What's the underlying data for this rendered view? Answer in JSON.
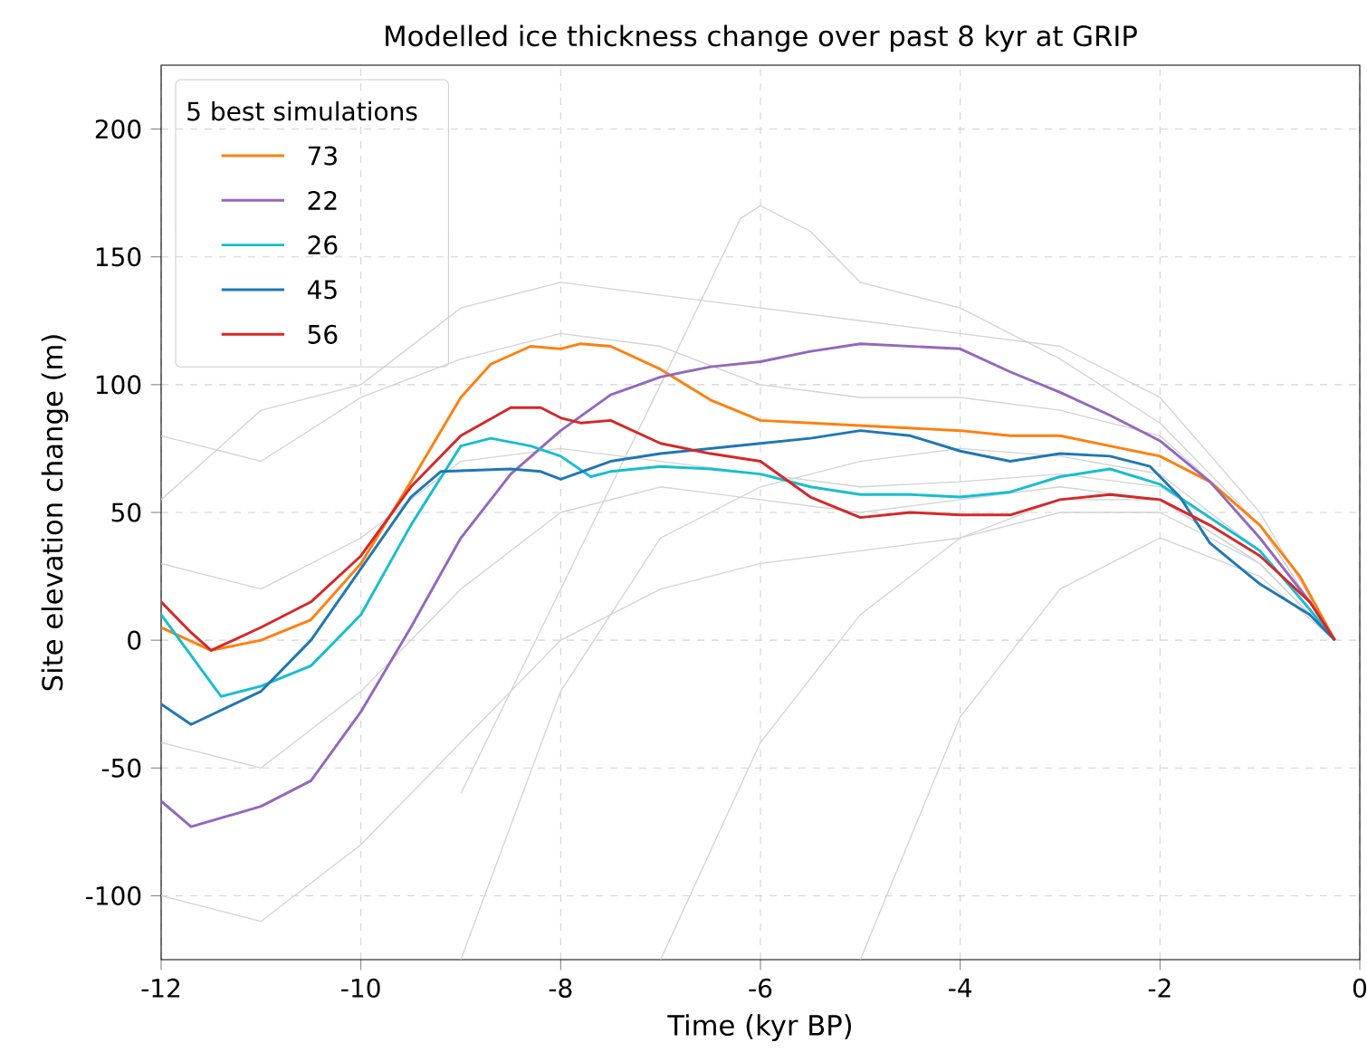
{
  "chart_data": {
    "type": "line",
    "title": "Modelled ice thickness change over past 8 kyr at GRIP",
    "xlabel": "Time (kyr BP)",
    "ylabel": "Site elevation change (m)",
    "legend_title": "5 best simulations",
    "xlim": [
      -12,
      0
    ],
    "ylim": [
      -125,
      225
    ],
    "xticks": [
      -12,
      -10,
      -8,
      -6,
      -4,
      -2,
      0
    ],
    "yticks": [
      -100,
      -50,
      0,
      50,
      100,
      150,
      200
    ],
    "grid": true,
    "legend": "top left",
    "line_style": "solid",
    "marker": "none",
    "series": [
      {
        "color": "#d3d3d3",
        "x": [
          -12,
          -11,
          -10,
          -9,
          -8,
          -7,
          -6,
          -5,
          -4,
          -3,
          -2,
          -1,
          -0.25
        ],
        "values": [
          55,
          90,
          100,
          130,
          140,
          135,
          130,
          125,
          120,
          115,
          95,
          50,
          0
        ]
      },
      {
        "color": "#d3d3d3",
        "x": [
          -9,
          -8,
          -7,
          -6,
          -5,
          -4,
          -3,
          -2,
          -1,
          -0.25
        ],
        "values": [
          -125,
          -20,
          40,
          60,
          70,
          75,
          72,
          65,
          35,
          0
        ]
      },
      {
        "color": "#d3d3d3",
        "x": [
          -12,
          -11,
          -10,
          -9,
          -8,
          -7,
          -6,
          -5,
          -4,
          -3,
          -2,
          -1,
          -0.25
        ],
        "values": [
          30,
          20,
          40,
          70,
          75,
          70,
          65,
          60,
          62,
          65,
          60,
          35,
          0
        ]
      },
      {
        "color": "#d3d3d3",
        "x": [
          -12,
          -11,
          -10,
          -9,
          -8,
          -7,
          -6,
          -5,
          -4,
          -3,
          -2,
          -1,
          -0.25
        ],
        "values": [
          -40,
          -50,
          -20,
          20,
          50,
          60,
          55,
          50,
          55,
          60,
          55,
          30,
          0
        ]
      },
      {
        "color": "#d3d3d3",
        "x": [
          -7,
          -6,
          -5,
          -4,
          -3,
          -2,
          -1,
          -0.25
        ],
        "values": [
          -125,
          -40,
          10,
          40,
          55,
          55,
          30,
          0
        ]
      },
      {
        "color": "#d3d3d3",
        "x": [
          -12,
          -11,
          -10,
          -9,
          -8,
          -7,
          -6,
          -5,
          -4,
          -3,
          -2,
          -1,
          -0.25
        ],
        "values": [
          80,
          70,
          95,
          110,
          120,
          115,
          100,
          95,
          95,
          90,
          80,
          45,
          0
        ]
      },
      {
        "color": "#d3d3d3",
        "x": [
          -9,
          -8,
          -7,
          -6.2,
          -6,
          -5.5,
          -5,
          -4,
          -3,
          -2,
          -1,
          -0.25
        ],
        "values": [
          -60,
          20,
          100,
          165,
          170,
          160,
          140,
          130,
          110,
          85,
          45,
          0
        ]
      },
      {
        "color": "#d3d3d3",
        "x": [
          -5,
          -4,
          -3,
          -2,
          -1,
          -0.25
        ],
        "values": [
          -125,
          -30,
          20,
          40,
          25,
          0
        ]
      },
      {
        "color": "#d3d3d3",
        "x": [
          -12,
          -11,
          -10,
          -9,
          -8,
          -7,
          -6,
          -5,
          -4,
          -3,
          -2,
          -1,
          -0.25
        ],
        "values": [
          -100,
          -110,
          -80,
          -40,
          0,
          20,
          30,
          35,
          40,
          50,
          50,
          30,
          0
        ]
      },
      {
        "name": "73",
        "color": "#ff7f0e",
        "x": [
          -12,
          -11.5,
          -11,
          -10.5,
          -10,
          -9.5,
          -9,
          -8.7,
          -8.3,
          -8,
          -7.8,
          -7.5,
          -7,
          -6.5,
          -6,
          -5.5,
          -5,
          -4.5,
          -4,
          -3.5,
          -3,
          -2.5,
          -2,
          -1.5,
          -1,
          -0.6,
          -0.25
        ],
        "values": [
          5,
          -4,
          0,
          8,
          30,
          62,
          95,
          108,
          115,
          114,
          116,
          115,
          106,
          94,
          86,
          85,
          84,
          83,
          82,
          80,
          80,
          76,
          72,
          62,
          45,
          25,
          0
        ]
      },
      {
        "name": "22",
        "color": "#9467bd",
        "x": [
          -12,
          -11.7,
          -11,
          -10.5,
          -10,
          -9.5,
          -9,
          -8.5,
          -8,
          -7.5,
          -7,
          -6.5,
          -6,
          -5.5,
          -5,
          -4.5,
          -4,
          -3.5,
          -3,
          -2.5,
          -2,
          -1.5,
          -1,
          -0.5,
          -0.25
        ],
        "values": [
          -63,
          -73,
          -65,
          -55,
          -28,
          5,
          40,
          65,
          82,
          96,
          103,
          107,
          109,
          113,
          116,
          115,
          114,
          105,
          97,
          88,
          78,
          62,
          40,
          15,
          0
        ]
      },
      {
        "name": "26",
        "color": "#17becf",
        "x": [
          -12,
          -11.4,
          -11,
          -10.5,
          -10,
          -9.5,
          -9,
          -8.7,
          -8.3,
          -8,
          -7.7,
          -7.5,
          -7,
          -6.5,
          -6,
          -5.5,
          -5,
          -4.5,
          -4,
          -3.5,
          -3,
          -2.5,
          -2,
          -1.5,
          -1,
          -0.5,
          -0.25
        ],
        "values": [
          10,
          -22,
          -18,
          -10,
          10,
          45,
          76,
          79,
          76,
          72,
          64,
          66,
          68,
          67,
          65,
          60,
          57,
          57,
          56,
          58,
          64,
          67,
          61,
          48,
          35,
          12,
          0
        ]
      },
      {
        "name": "45",
        "color": "#1f77b4",
        "x": [
          -12,
          -11.7,
          -11,
          -10.5,
          -10,
          -9.5,
          -9.2,
          -8.5,
          -8.2,
          -8,
          -7.5,
          -7,
          -6.5,
          -6,
          -5.5,
          -5,
          -4.5,
          -4,
          -3.5,
          -3,
          -2.5,
          -2.1,
          -1.8,
          -1.5,
          -1,
          -0.5,
          -0.25
        ],
        "values": [
          -25,
          -33,
          -20,
          0,
          28,
          56,
          66,
          67,
          66,
          63,
          70,
          73,
          75,
          77,
          79,
          82,
          80,
          74,
          70,
          73,
          72,
          68,
          56,
          38,
          22,
          10,
          0
        ]
      },
      {
        "name": "56",
        "color": "#d62728",
        "x": [
          -12,
          -11.7,
          -11.5,
          -11,
          -10.5,
          -10,
          -9.5,
          -9,
          -8.5,
          -8.2,
          -8,
          -7.8,
          -7.5,
          -7,
          -6.5,
          -6,
          -5.5,
          -5,
          -4.5,
          -4,
          -3.5,
          -3,
          -2.5,
          -2,
          -1.5,
          -1,
          -0.5,
          -0.25
        ],
        "values": [
          15,
          3,
          -4,
          5,
          15,
          33,
          60,
          80,
          91,
          91,
          87,
          85,
          86,
          77,
          73,
          70,
          56,
          48,
          50,
          49,
          49,
          55,
          57,
          55,
          45,
          33,
          15,
          0
        ]
      }
    ]
  }
}
